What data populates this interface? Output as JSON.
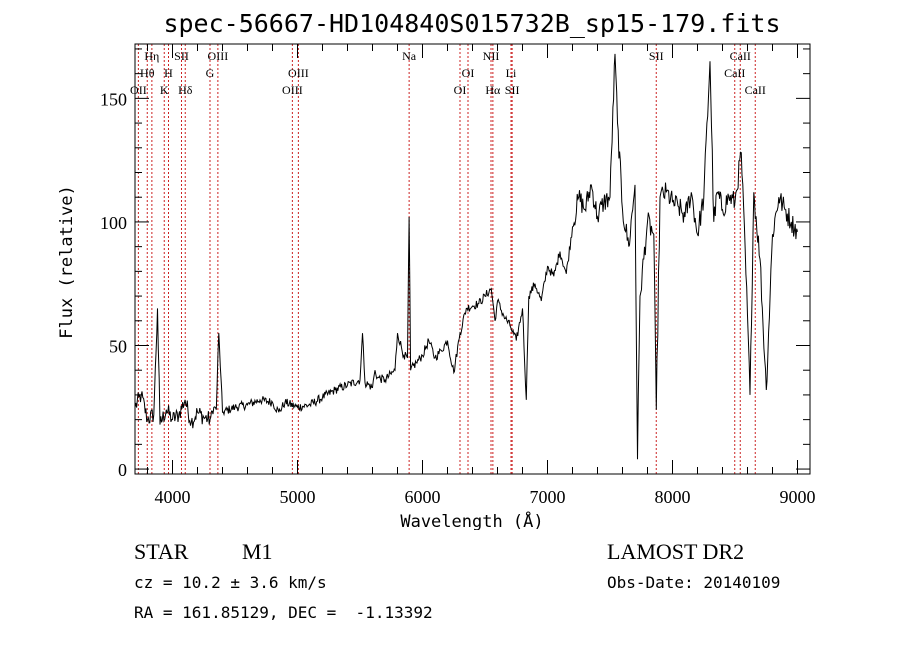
{
  "title": "spec-56667-HD104840S015732B_sp15-179.fits",
  "info": {
    "class_label": "STAR",
    "subclass": "M1",
    "cz": "cz = 10.2 ± 3.6 km/s",
    "coords": "RA = 161.85129, DEC =  -1.13392",
    "survey": "LAMOST DR2",
    "obs_date": "Obs-Date: 20140109"
  },
  "chart_data": {
    "type": "line",
    "title": "spec-56667-HD104840S015732B_sp15-179.fits",
    "xlabel": "Wavelength (Å)",
    "ylabel": "Flux (relative)",
    "xlim": [
      3700,
      9100
    ],
    "ylim": [
      -2,
      172
    ],
    "x_ticks": [
      4000,
      5000,
      6000,
      7000,
      8000,
      9000
    ],
    "y_ticks": [
      0,
      50,
      100,
      150
    ],
    "grid": false,
    "line_color": "#000000",
    "marker_color": "#cc2222",
    "spectral_lines": [
      {
        "label": "OII",
        "wavelength": 3727,
        "row": 2
      },
      {
        "label": "Hθ",
        "wavelength": 3798,
        "row": 1
      },
      {
        "label": "Hη",
        "wavelength": 3835,
        "row": 0
      },
      {
        "label": "K",
        "wavelength": 3934,
        "row": 2
      },
      {
        "label": "H",
        "wavelength": 3968,
        "row": 1
      },
      {
        "label": "SII",
        "wavelength": 4072,
        "row": 0
      },
      {
        "label": "Hδ",
        "wavelength": 4102,
        "row": 2
      },
      {
        "label": "G",
        "wavelength": 4300,
        "row": 1
      },
      {
        "label": "OIII",
        "wavelength": 4363,
        "row": 0
      },
      {
        "label": "OIII",
        "wavelength": 4959,
        "row": 2
      },
      {
        "label": "OIII",
        "wavelength": 5007,
        "row": 1
      },
      {
        "label": "Na",
        "wavelength": 5893,
        "row": 0
      },
      {
        "label": "OI",
        "wavelength": 6300,
        "row": 2
      },
      {
        "label": "OI",
        "wavelength": 6364,
        "row": 1
      },
      {
        "label": "NII",
        "wavelength": 6548,
        "row": 0
      },
      {
        "label": "Hα",
        "wavelength": 6563,
        "row": 2
      },
      {
        "label": "Li",
        "wavelength": 6708,
        "row": 1
      },
      {
        "label": "SII",
        "wavelength": 6717,
        "row": 2
      },
      {
        "label": "SII",
        "wavelength": 7870,
        "row": 0
      },
      {
        "label": "CaII",
        "wavelength": 8498,
        "row": 1
      },
      {
        "label": "CaII",
        "wavelength": 8542,
        "row": 0
      },
      {
        "label": "CaII",
        "wavelength": 8662,
        "row": 2
      }
    ],
    "series": [
      {
        "x": [
          3700,
          3750,
          3800,
          3850,
          3880,
          3900,
          3950,
          4000,
          4050,
          4100,
          4150,
          4200,
          4250,
          4300,
          4330,
          4350,
          4370,
          4400,
          4500,
          4600,
          4700,
          4800,
          4850,
          4900,
          5000,
          5100,
          5200,
          5300,
          5400,
          5500,
          5520,
          5540,
          5600,
          5620,
          5640,
          5700,
          5780,
          5800,
          5850,
          5880,
          5893,
          5905,
          5950,
          6000,
          6050,
          6100,
          6150,
          6200,
          6250,
          6300,
          6350,
          6400,
          6450,
          6500,
          6550,
          6580,
          6600,
          6650,
          6700,
          6750,
          6800,
          6830,
          6850,
          6900,
          6950,
          7000,
          7050,
          7100,
          7150,
          7200,
          7250,
          7300,
          7350,
          7400,
          7450,
          7500,
          7540,
          7560,
          7600,
          7650,
          7700,
          7720,
          7740,
          7800,
          7850,
          7870,
          7900,
          7950,
          8000,
          8050,
          8100,
          8150,
          8200,
          8250,
          8300,
          8330,
          8360,
          8400,
          8450,
          8500,
          8550,
          8600,
          8620,
          8650,
          8700,
          8750,
          8800,
          8850,
          8900,
          8950,
          9000
        ],
        "y": [
          25,
          30,
          20,
          22,
          65,
          18,
          24,
          20,
          22,
          28,
          19,
          23,
          21,
          20,
          25,
          24,
          55,
          23,
          25,
          26,
          28,
          27,
          23,
          27,
          25,
          26,
          29,
          32,
          34,
          36,
          55,
          35,
          33,
          40,
          37,
          36,
          40,
          55,
          46,
          45,
          102,
          40,
          43,
          46,
          52,
          45,
          48,
          52,
          39,
          55,
          65,
          66,
          67,
          70,
          73,
          60,
          68,
          62,
          58,
          52,
          65,
          28,
          70,
          75,
          68,
          82,
          78,
          88,
          79,
          98,
          110,
          105,
          115,
          102,
          108,
          110,
          168,
          140,
          105,
          90,
          115,
          4,
          70,
          100,
          95,
          24,
          110,
          112,
          108,
          106,
          102,
          112,
          95,
          110,
          165,
          100,
          112,
          105,
          110,
          108,
          128,
          62,
          30,
          112,
          85,
          32,
          95,
          110,
          105,
          100,
          96
        ]
      }
    ]
  }
}
